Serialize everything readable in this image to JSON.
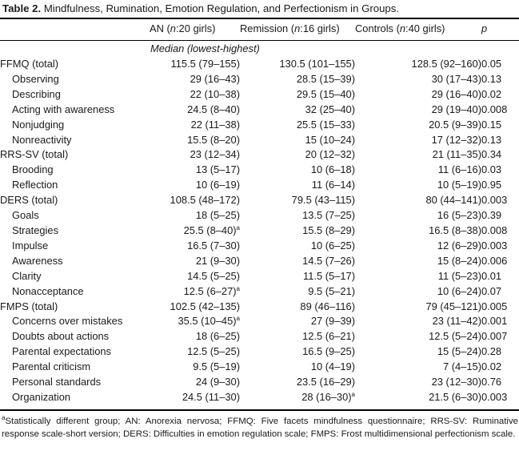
{
  "caption": {
    "label": "Table 2.",
    "title": "Mindfulness, Rumination, Emotion Regulation, and Perfectionism in Groups."
  },
  "columns": {
    "an": "AN (",
    "an_n": "n",
    "an_rest": ":20 girls)",
    "remission": "Remission (",
    "remission_n": "n",
    "remission_rest": ":16 girls)",
    "controls": "Controls (",
    "controls_n": "n",
    "controls_rest": ":40 girls)",
    "p": "p"
  },
  "median_label": "Median (lowest-highest)",
  "rows": [
    {
      "label": "FFMQ (total)",
      "an": "115.5 (79–155)",
      "rem": "130.5 (101–155)",
      "ctrl": "128.5 (92–160)",
      "p": "0.05"
    },
    {
      "label": "Observing",
      "an": "29 (16–43)",
      "rem": "28.5 (15–39)",
      "ctrl": "30 (17–43)",
      "p": "0.13"
    },
    {
      "label": "Describing",
      "an": "22 (10–38)",
      "rem": "29.5 (15–40)",
      "ctrl": "29 (16–40)",
      "p": "0.02"
    },
    {
      "label": "Acting with awareness",
      "an": "24.5 (8–40)",
      "rem": "32 (25–40)",
      "ctrl": "29 (19–40)",
      "p": "0.008"
    },
    {
      "label": "Nonjudging",
      "an": "22 (11–38)",
      "rem": "25.5 (15–33)",
      "ctrl": "20.5 (9–39)",
      "p": "0.15"
    },
    {
      "label": "Nonreactivity",
      "an": "15.5 (8–20)",
      "rem": "15 (10–24)",
      "ctrl": "17 (12–32)",
      "p": "0.13"
    },
    {
      "label": "RRS-SV (total)",
      "an": "23 (12–34)",
      "rem": "20 (12–32)",
      "ctrl": "21 (11–35)",
      "p": "0.34"
    },
    {
      "label": "Brooding",
      "an": "13 (5–17)",
      "rem": "10 (6–18)",
      "ctrl": "11 (6–16)",
      "p": "0.03"
    },
    {
      "label": "Reflection",
      "an": "10 (6–19)",
      "rem": "11 (6–14)",
      "ctrl": "10 (5–19)",
      "p": "0.95"
    },
    {
      "label": "DERS (total)",
      "an": "108.5 (48–172)",
      "rem": "79.5 (43–115)",
      "ctrl": "80 (44–141)",
      "p": "0.003"
    },
    {
      "label": "Goals",
      "an": "18 (5–25)",
      "rem": "13.5 (7–25)",
      "ctrl": "16 (5–23)",
      "p": "0.39"
    },
    {
      "label": "Strategies",
      "an": "25.5 (8–40)",
      "an_sup": "a",
      "rem": "15.5 (8–29)",
      "ctrl": "16.5 (8–38)",
      "p": "0.008"
    },
    {
      "label": "Impulse",
      "an": "16.5 (7–30)",
      "rem": "10 (6–25)",
      "ctrl": "12 (6–29)",
      "p": "0.003"
    },
    {
      "label": "Awareness",
      "an": "21 (9–30)",
      "rem": "14.5 (7–26)",
      "ctrl": "15 (8–24)",
      "p": "0.006"
    },
    {
      "label": "Clarity",
      "an": "14.5 (5–25)",
      "rem": "11.5 (5–17)",
      "ctrl": "11 (5–23)",
      "p": "0.01"
    },
    {
      "label": "Nonacceptance",
      "an": "12.5 (6–27)",
      "an_sup": "a",
      "rem": "9.5 (5–21)",
      "ctrl": "10 (6–24)",
      "p": "0.07"
    },
    {
      "label": "FMPS (total)",
      "an": "102.5 (42–135)",
      "rem": "89 (46–116)",
      "ctrl": "79 (45–121)",
      "p": "0.005"
    },
    {
      "label": "Concerns over mistakes",
      "an": "35.5 (10–45)",
      "an_sup": "a",
      "rem": "27 (9–39)",
      "ctrl": "23 (11–42)",
      "p": "0.001"
    },
    {
      "label": "Doubts about actions",
      "an": "18 (6–25)",
      "rem": "12.5 (6–21)",
      "ctrl": "12.5 (5–24)",
      "p": "0.007"
    },
    {
      "label": "Parental expectations",
      "an": "12.5 (5–25)",
      "rem": "16.5 (9–25)",
      "ctrl": "15 (5–24)",
      "p": "0.28"
    },
    {
      "label": "Parental criticism",
      "an": "9.5 (5–19)",
      "rem": "10 (4–19)",
      "ctrl": "7 (4–15)",
      "p": "0.02"
    },
    {
      "label": "Personal standards",
      "an": "24 (9–30)",
      "rem": "23.5 (16–29)",
      "ctrl": "23 (12–30)",
      "p": "0.76"
    },
    {
      "label": "Organization",
      "an": "24.5 (11–30)",
      "rem": "28 (16–30)",
      "rem_sup": "a",
      "ctrl": "21.5 (6–30)",
      "p": "0.003"
    }
  ],
  "footnote": {
    "marker": "a",
    "text": "Statistically different group; AN: Anorexia nervosa; FFMQ: Five facets mindfulness questionnaire; RRS-SV: Ruminative response scale-short version; DERS: Difficulties in emotion regulation scale; FMPS: Frost multidimensional perfectionism scale."
  }
}
